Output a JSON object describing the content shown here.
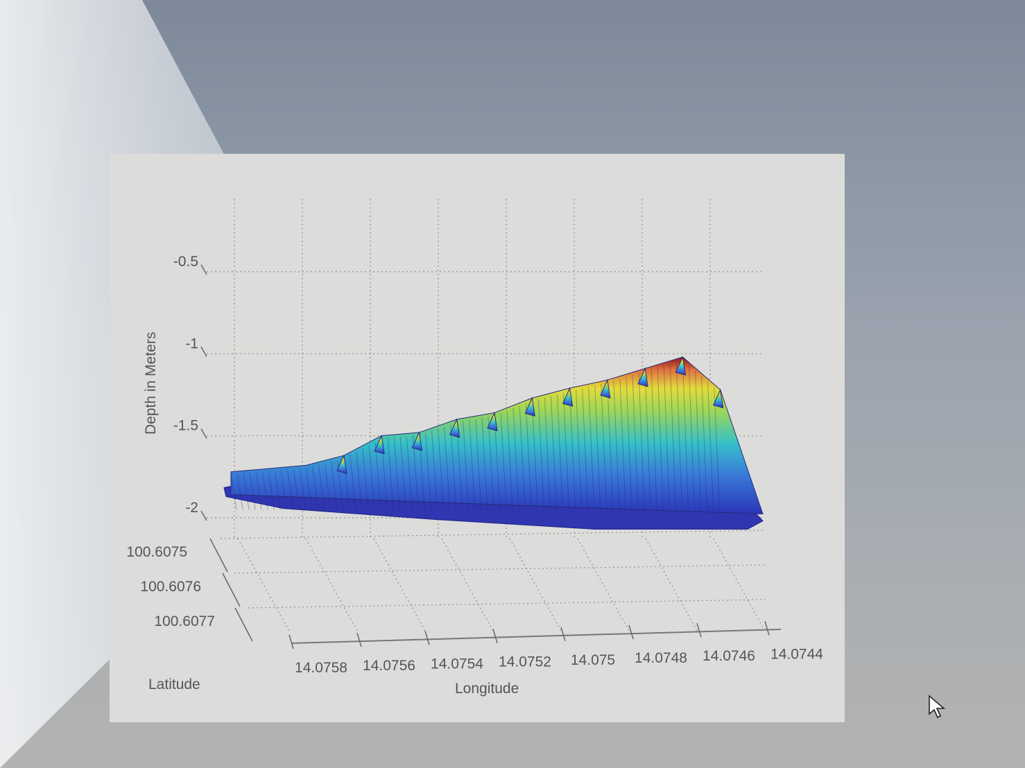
{
  "chart_data": {
    "type": "surface",
    "title": "",
    "xlabel": "Longitude",
    "ylabel": "Latitude",
    "zlabel": "Depth in Meters",
    "x_ticks": [
      "14.0758",
      "14.0756",
      "14.0754",
      "14.0752",
      "14.075",
      "14.0748",
      "14.0746",
      "14.0744"
    ],
    "y_ticks": [
      "100.6075",
      "100.6076",
      "100.6077"
    ],
    "z_ticks": [
      "-0.5",
      "-1",
      "-1.5",
      "-2"
    ],
    "xlim": [
      14.0744,
      14.0758
    ],
    "ylim": [
      100.6075,
      100.6077
    ],
    "zlim": [
      -2,
      -0.5
    ],
    "grid": true,
    "colormap": "jet",
    "ridge_profile": {
      "longitude": [
        14.0758,
        14.0757,
        14.0756,
        14.0755,
        14.0754,
        14.0753,
        14.0752,
        14.0751,
        14.075,
        14.0749,
        14.0748,
        14.0747,
        14.0746,
        14.0745
      ],
      "peak_depth": [
        -1.72,
        -1.7,
        -1.68,
        -1.62,
        -1.5,
        -1.48,
        -1.4,
        -1.36,
        -1.27,
        -1.21,
        -1.16,
        -1.09,
        -1.02,
        -1.22
      ]
    },
    "floor_depth": -1.85
  },
  "colors": {
    "low": "#2a35b8",
    "mid": "#36c0c8",
    "high_mid": "#d8dc3a",
    "high": "#8e1414"
  },
  "cursor_icon": "arrow-pointer-icon"
}
